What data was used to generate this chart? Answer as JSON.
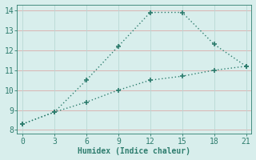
{
  "line1_x": [
    0,
    3,
    6,
    9,
    12,
    15,
    18,
    21
  ],
  "line1_y": [
    8.3,
    8.9,
    10.5,
    12.2,
    13.9,
    13.9,
    12.3,
    11.2
  ],
  "line2_x": [
    0,
    3,
    6,
    9,
    12,
    15,
    18,
    21
  ],
  "line2_y": [
    8.3,
    8.9,
    9.4,
    10.0,
    10.5,
    10.7,
    11.0,
    11.2
  ],
  "line_color": "#2e7d6e",
  "xlabel": "Humidex (Indice chaleur)",
  "xlabel_fontsize": 7,
  "xlim": [
    -0.5,
    21.5
  ],
  "ylim": [
    7.8,
    14.3
  ],
  "yticks": [
    8,
    9,
    10,
    11,
    12,
    13,
    14
  ],
  "xticks": [
    0,
    3,
    6,
    9,
    12,
    15,
    18,
    21
  ],
  "bg_color": "#d8eeec",
  "grid_color_h": "#daaaa8",
  "grid_color_v": "#b8d8d5",
  "marker": "+",
  "marker_size": 5,
  "marker_lw": 1.2,
  "linewidth": 1.0,
  "tick_color": "#2e7d6e",
  "tick_fontsize": 7
}
